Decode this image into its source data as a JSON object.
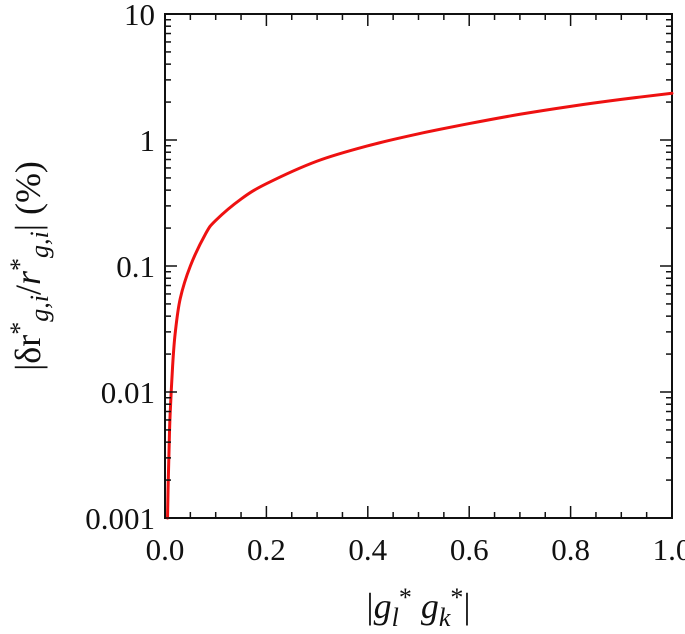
{
  "chart_data": {
    "type": "line",
    "title": "",
    "xlabel": {
      "parts": [
        {
          "t": "|",
          "style": "normal"
        },
        {
          "t": "g",
          "style": "italic"
        },
        {
          "t": "l",
          "style": "italic-sub"
        },
        {
          "t": "*",
          "style": "sup"
        },
        {
          "t": " ",
          "style": "normal"
        },
        {
          "t": "g",
          "style": "italic"
        },
        {
          "t": "k",
          "style": "italic-sub"
        },
        {
          "t": "*",
          "style": "sup"
        },
        {
          "t": "|",
          "style": "normal"
        }
      ]
    },
    "ylabel": {
      "parts": [
        {
          "t": "|δr",
          "style": "normal"
        },
        {
          "t": "*",
          "style": "sup"
        },
        {
          "t": "g,i",
          "style": "italic-sub"
        },
        {
          "t": "/",
          "style": "normal"
        },
        {
          "t": "r",
          "style": "italic"
        },
        {
          "t": "*",
          "style": "sup"
        },
        {
          "t": "g,i",
          "style": "italic-sub"
        },
        {
          "t": "| (%)",
          "style": "normal"
        }
      ]
    },
    "xlim": [
      0.0,
      1.0
    ],
    "ylim": [
      0.001,
      10
    ],
    "yscale": "log",
    "grid": false,
    "legend": "none",
    "x_ticks": [
      0.0,
      0.2,
      0.4,
      0.6,
      0.8,
      1.0
    ],
    "x_tick_labels": [
      "0.0",
      "0.2",
      "0.4",
      "0.6",
      "0.8",
      "1.0"
    ],
    "y_ticks": [
      0.001,
      0.01,
      0.1,
      1,
      10
    ],
    "y_tick_labels": [
      "0.001",
      "0.01",
      "0.1",
      "1",
      "10"
    ],
    "series": [
      {
        "color": "#ee1111",
        "x": [
          0.005,
          0.006,
          0.008,
          0.01,
          0.015,
          0.02,
          0.03,
          0.05,
          0.08,
          0.1,
          0.15,
          0.2,
          0.3,
          0.4,
          0.5,
          0.6,
          0.7,
          0.8,
          0.9,
          1.0
        ],
        "y": [
          0.001,
          0.00165,
          0.0035,
          0.0065,
          0.016,
          0.029,
          0.055,
          0.1,
          0.18,
          0.23,
          0.34,
          0.45,
          0.68,
          0.9,
          1.12,
          1.35,
          1.6,
          1.85,
          2.1,
          2.35
        ]
      }
    ]
  }
}
